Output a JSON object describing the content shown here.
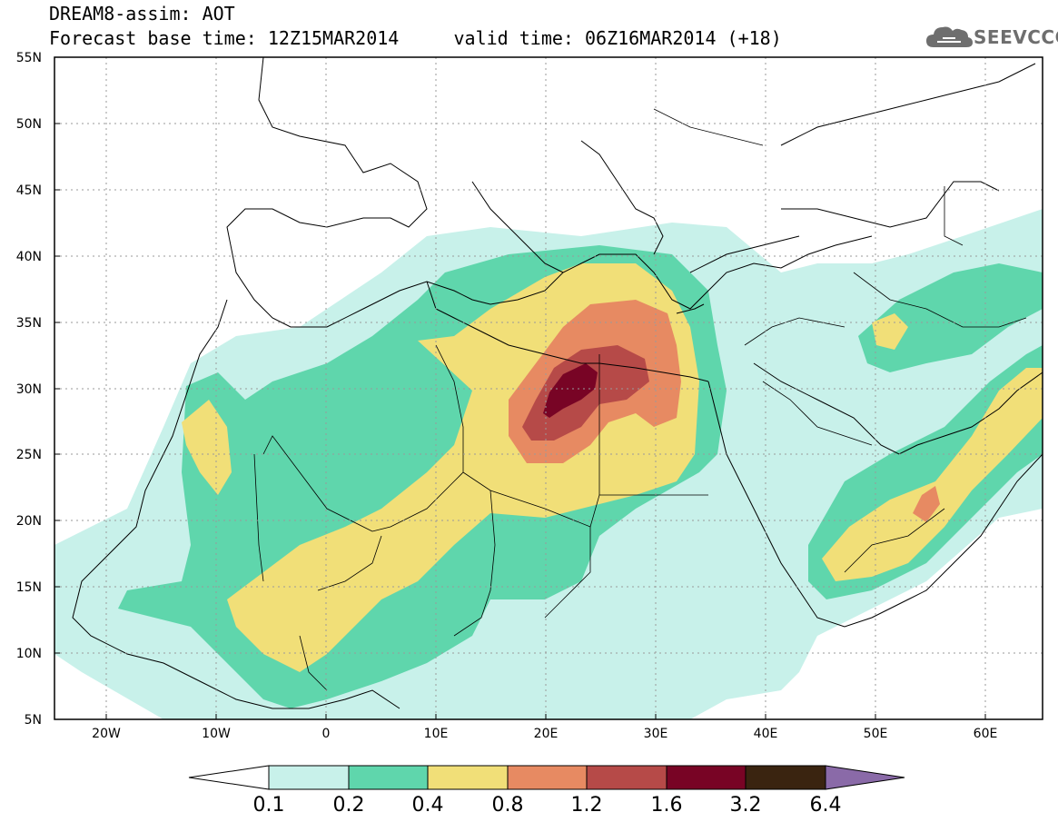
{
  "header": {
    "line1": "DREAM8-assim: AOT",
    "line2": "Forecast base time: 12Z15MAR2014     valid time: 06Z16MAR2014 (+18)"
  },
  "logo": {
    "text": "SEEVCCC",
    "icon": "cloud-icon"
  },
  "map": {
    "lon_range": [
      -25,
      65
    ],
    "lat_range": [
      5,
      55
    ],
    "lat_ticks": [
      "55N",
      "50N",
      "45N",
      "40N",
      "35N",
      "30N",
      "25N",
      "20N",
      "15N",
      "10N",
      "5N"
    ],
    "lon_ticks": [
      "20W",
      "10W",
      "0",
      "10E",
      "20E",
      "30E",
      "40E",
      "50E",
      "60E"
    ],
    "grid": "dotted"
  },
  "colorbar": {
    "labels": [
      "0.1",
      "0.2",
      "0.4",
      "0.8",
      "1.2",
      "1.6",
      "3.2",
      "6.4"
    ],
    "colors": [
      "#c8f1ea",
      "#5fd6ac",
      "#f1df78",
      "#e78a62",
      "#b64a48",
      "#780425",
      "#3a2410",
      "#8a6aa8"
    ]
  }
}
